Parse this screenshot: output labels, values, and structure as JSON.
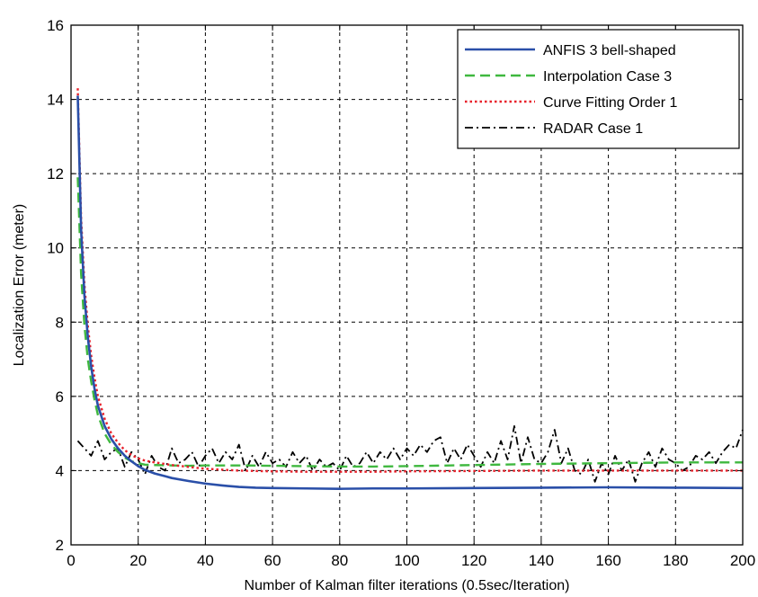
{
  "chart_data": {
    "type": "line",
    "title": "",
    "xlabel": "Number of Kalman filter iterations (0.5sec/Iteration)",
    "ylabel": "Localization Error (meter)",
    "xlim": [
      0,
      200
    ],
    "ylim": [
      2,
      16
    ],
    "xticks": [
      0,
      20,
      40,
      60,
      80,
      100,
      120,
      140,
      160,
      180,
      200
    ],
    "yticks": [
      2,
      4,
      6,
      8,
      10,
      12,
      14,
      16
    ],
    "grid": true,
    "legend_position": "top-right",
    "series": [
      {
        "name": "ANFIS 3 bell-shaped",
        "color": "#2a4fa8",
        "style": "solid",
        "x": [
          2,
          3,
          4,
          5,
          6,
          7,
          8,
          10,
          12,
          14,
          16,
          18,
          20,
          22,
          25,
          28,
          30,
          35,
          40,
          45,
          50,
          55,
          60,
          70,
          80,
          90,
          100,
          120,
          140,
          160,
          180,
          200
        ],
        "y": [
          14.1,
          10.5,
          8.7,
          7.6,
          6.8,
          6.2,
          5.75,
          5.2,
          4.85,
          4.6,
          4.4,
          4.25,
          4.12,
          4.02,
          3.92,
          3.85,
          3.8,
          3.72,
          3.65,
          3.6,
          3.56,
          3.54,
          3.53,
          3.52,
          3.51,
          3.52,
          3.52,
          3.53,
          3.54,
          3.55,
          3.54,
          3.53
        ]
      },
      {
        "name": "Interpolation Case 3",
        "color": "#3fb83f",
        "style": "dashed",
        "x": [
          2,
          3,
          4,
          5,
          6,
          7,
          8,
          10,
          12,
          14,
          16,
          18,
          20,
          22,
          25,
          30,
          35,
          40,
          50,
          60,
          70,
          80,
          90,
          100,
          120,
          140,
          160,
          180,
          200
        ],
        "y": [
          11.9,
          9.3,
          7.9,
          7.0,
          6.4,
          5.9,
          5.5,
          5.0,
          4.7,
          4.5,
          4.35,
          4.25,
          4.2,
          4.16,
          4.15,
          4.14,
          4.13,
          4.14,
          4.14,
          4.13,
          4.12,
          4.11,
          4.11,
          4.12,
          4.15,
          4.18,
          4.2,
          4.22,
          4.22
        ]
      },
      {
        "name": "Curve Fitting Order 1",
        "color": "#e8202a",
        "style": "dotted",
        "x": [
          2,
          3,
          4,
          5,
          6,
          7,
          8,
          10,
          12,
          14,
          16,
          18,
          20,
          22,
          25,
          30,
          35,
          40,
          50,
          60,
          70,
          80,
          90,
          100,
          120,
          140,
          160,
          180,
          200
        ],
        "y": [
          14.3,
          10.8,
          9.0,
          7.9,
          7.1,
          6.5,
          6.0,
          5.4,
          5.0,
          4.75,
          4.55,
          4.42,
          4.33,
          4.27,
          4.22,
          4.15,
          4.1,
          4.05,
          4.0,
          3.98,
          3.97,
          3.97,
          3.97,
          3.98,
          3.99,
          4.0,
          4.0,
          4.0,
          4.0
        ]
      },
      {
        "name": "RADAR Case 1",
        "color": "#000000",
        "style": "dashdot",
        "x": [
          2,
          4,
          6,
          8,
          10,
          12,
          14,
          16,
          18,
          20,
          22,
          24,
          26,
          28,
          30,
          32,
          34,
          36,
          38,
          40,
          42,
          44,
          46,
          48,
          50,
          52,
          54,
          56,
          58,
          60,
          62,
          64,
          66,
          68,
          70,
          72,
          74,
          76,
          78,
          80,
          82,
          84,
          86,
          88,
          90,
          92,
          94,
          96,
          98,
          100,
          102,
          104,
          106,
          108,
          110,
          112,
          114,
          116,
          118,
          120,
          122,
          124,
          126,
          128,
          130,
          132,
          134,
          136,
          138,
          140,
          142,
          144,
          146,
          148,
          150,
          152,
          154,
          156,
          158,
          160,
          162,
          164,
          166,
          168,
          170,
          172,
          174,
          176,
          178,
          180,
          182,
          184,
          186,
          188,
          190,
          192,
          194,
          196,
          198,
          200
        ],
        "y": [
          4.8,
          4.6,
          4.4,
          4.8,
          4.3,
          4.5,
          4.6,
          4.1,
          4.5,
          4.3,
          3.9,
          4.4,
          4.1,
          4.0,
          4.6,
          4.2,
          4.3,
          4.5,
          4.1,
          4.4,
          4.6,
          4.2,
          4.5,
          4.3,
          4.7,
          4.0,
          4.4,
          4.1,
          4.5,
          4.2,
          4.3,
          4.1,
          4.5,
          4.2,
          4.4,
          4.0,
          4.3,
          4.1,
          4.2,
          4.0,
          4.4,
          4.1,
          4.2,
          4.5,
          4.2,
          4.5,
          4.3,
          4.6,
          4.3,
          4.6,
          4.4,
          4.7,
          4.5,
          4.8,
          4.9,
          4.2,
          4.6,
          4.3,
          4.7,
          4.4,
          4.1,
          4.5,
          4.2,
          4.8,
          4.3,
          5.2,
          4.2,
          4.9,
          4.3,
          4.2,
          4.5,
          5.1,
          4.2,
          4.6,
          4.0,
          3.9,
          4.3,
          3.7,
          4.2,
          3.9,
          4.4,
          4.0,
          4.3,
          3.7,
          4.2,
          4.5,
          4.1,
          4.6,
          4.3,
          4.2,
          4.0,
          4.1,
          4.4,
          4.3,
          4.5,
          4.2,
          4.5,
          4.7,
          4.6,
          5.1
        ]
      }
    ]
  }
}
